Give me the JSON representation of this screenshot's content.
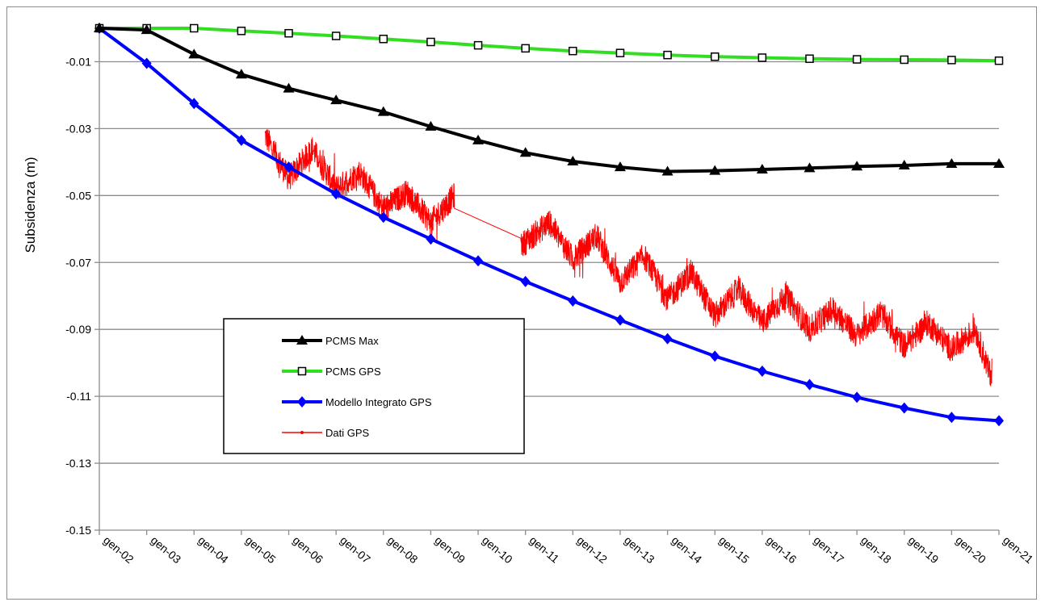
{
  "chart_data": {
    "type": "line",
    "ylabel": "Subsidenza (m)",
    "xlabel": "",
    "ylim": [
      -0.15,
      0.0
    ],
    "yticks": [
      -0.01,
      -0.03,
      -0.05,
      -0.07,
      -0.09,
      -0.11,
      -0.13,
      -0.15
    ],
    "ytick_labels": [
      "-0.01",
      "-0.03",
      "-0.05",
      "-0.07",
      "-0.09",
      "-0.11",
      "-0.13",
      "-0.15"
    ],
    "categories": [
      "gen-02",
      "gen-03",
      "gen-04",
      "gen-05",
      "gen-06",
      "gen-07",
      "gen-08",
      "gen-09",
      "gen-10",
      "gen-11",
      "gen-12",
      "gen-13",
      "gen-14",
      "gen-15",
      "gen-16",
      "gen-17",
      "gen-18",
      "gen-19",
      "gen-20",
      "gen-21"
    ],
    "grid": "horizontal",
    "legend_position": "lower-left",
    "series": [
      {
        "name": "PCMS Max",
        "color": "#000000",
        "marker": "triangle",
        "values": [
          0.0,
          -0.0005,
          -0.0078,
          -0.0138,
          -0.018,
          -0.0215,
          -0.025,
          -0.0294,
          -0.0335,
          -0.0372,
          -0.0398,
          -0.0415,
          -0.0428,
          -0.0426,
          -0.0422,
          -0.0418,
          -0.0413,
          -0.041,
          -0.0405,
          -0.0405
        ]
      },
      {
        "name": "PCMS GPS",
        "color": "#33dd22",
        "marker": "square",
        "values": [
          0.0,
          0.0,
          0.0,
          -0.0008,
          -0.0015,
          -0.0023,
          -0.0032,
          -0.0041,
          -0.0051,
          -0.006,
          -0.0068,
          -0.0074,
          -0.008,
          -0.0085,
          -0.0088,
          -0.0091,
          -0.0093,
          -0.0094,
          -0.0095,
          -0.0097
        ]
      },
      {
        "name": "Modello Integrato GPS",
        "color": "#0000ff",
        "marker": "diamond",
        "values": [
          0.0,
          -0.0105,
          -0.0225,
          -0.0335,
          -0.0415,
          -0.0495,
          -0.0565,
          -0.063,
          -0.0695,
          -0.0757,
          -0.0815,
          -0.0872,
          -0.0928,
          -0.098,
          -0.1025,
          -0.1065,
          -0.1103,
          -0.1135,
          -0.1163,
          -0.1173
        ]
      },
      {
        "name": "Dati GPS",
        "color": "#ff0000",
        "marker": "dot",
        "description_of_values": "daily GPS observations, noisy, sampled from 2005.5 to 2008.7 and from 2010.9 to 2020.8",
        "trend_points": [
          {
            "x": 2005.5,
            "y": -0.032
          },
          {
            "x": 2006.0,
            "y": -0.045
          },
          {
            "x": 2006.5,
            "y": -0.036
          },
          {
            "x": 2007.0,
            "y": -0.048
          },
          {
            "x": 2007.5,
            "y": -0.043
          },
          {
            "x": 2008.0,
            "y": -0.054
          },
          {
            "x": 2008.5,
            "y": -0.049
          },
          {
            "x": 2009.0,
            "y": -0.058
          },
          {
            "x": 2009.5,
            "y": -0.05
          },
          {
            "x": 2010.9,
            "y": -0.065
          },
          {
            "x": 2011.5,
            "y": -0.058
          },
          {
            "x": 2012.0,
            "y": -0.069
          },
          {
            "x": 2012.5,
            "y": -0.062
          },
          {
            "x": 2013.0,
            "y": -0.076
          },
          {
            "x": 2013.5,
            "y": -0.068
          },
          {
            "x": 2014.0,
            "y": -0.081
          },
          {
            "x": 2014.5,
            "y": -0.073
          },
          {
            "x": 2015.0,
            "y": -0.086
          },
          {
            "x": 2015.5,
            "y": -0.078
          },
          {
            "x": 2016.0,
            "y": -0.088
          },
          {
            "x": 2016.5,
            "y": -0.08
          },
          {
            "x": 2017.0,
            "y": -0.09
          },
          {
            "x": 2017.5,
            "y": -0.084
          },
          {
            "x": 2018.0,
            "y": -0.092
          },
          {
            "x": 2018.5,
            "y": -0.085
          },
          {
            "x": 2019.0,
            "y": -0.095
          },
          {
            "x": 2019.5,
            "y": -0.088
          },
          {
            "x": 2020.0,
            "y": -0.096
          },
          {
            "x": 2020.5,
            "y": -0.09
          },
          {
            "x": 2020.8,
            "y": -0.103
          }
        ]
      }
    ]
  }
}
